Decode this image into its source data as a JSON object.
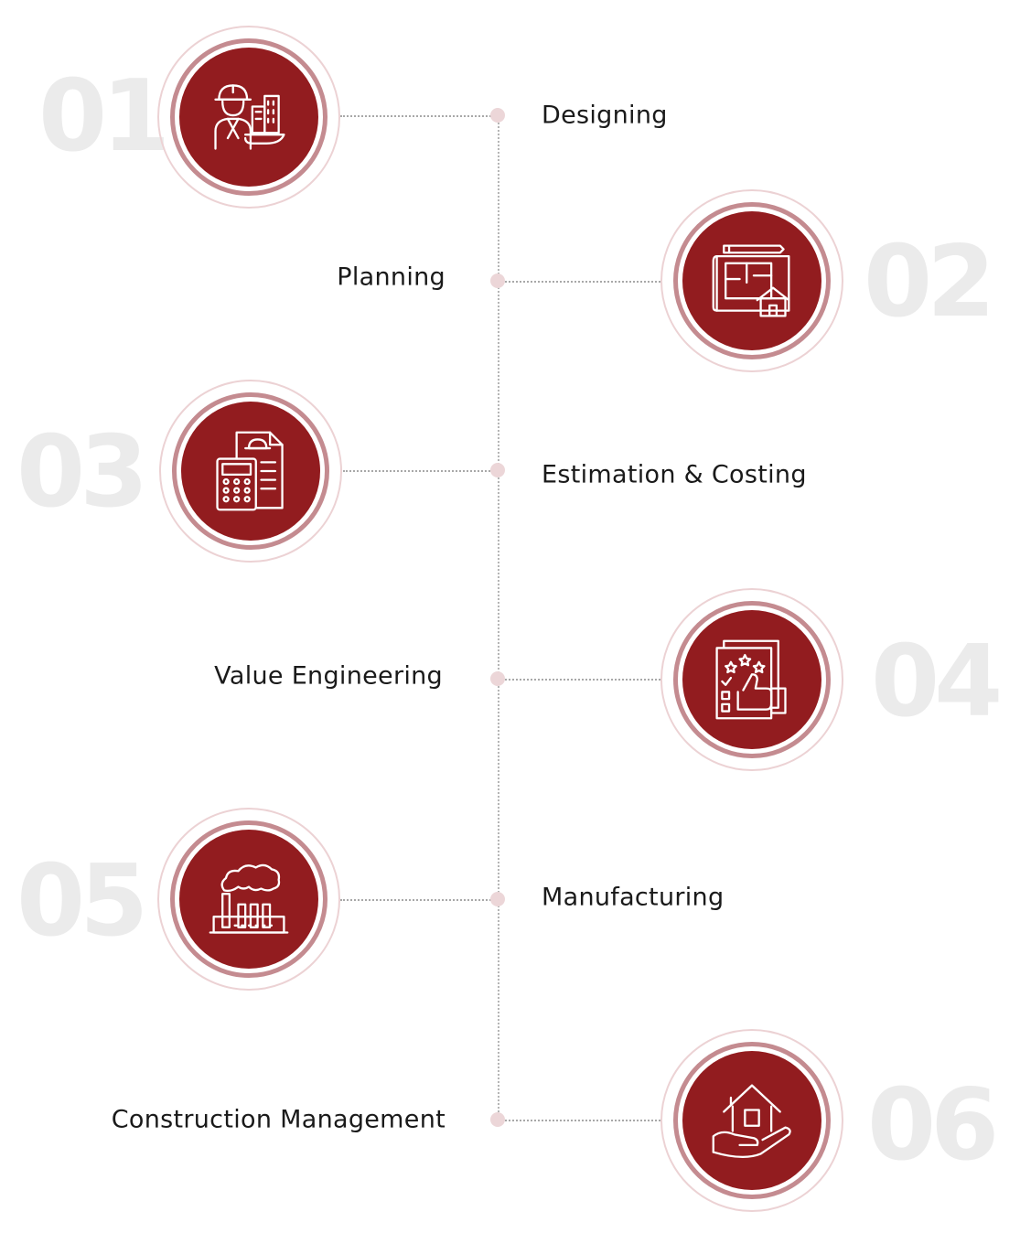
{
  "steps": [
    {
      "number": "01",
      "label": "Designing",
      "icon": "engineer-building-icon"
    },
    {
      "number": "02",
      "label": "Planning",
      "icon": "blueprint-house-icon"
    },
    {
      "number": "03",
      "label": "Estimation & Costing",
      "icon": "calculator-document-icon"
    },
    {
      "number": "04",
      "label": "Value Engineering",
      "icon": "rating-thumbs-up-icon"
    },
    {
      "number": "05",
      "label": "Manufacturing",
      "icon": "factory-icon"
    },
    {
      "number": "06",
      "label": "Construction Management",
      "icon": "house-in-hand-icon"
    }
  ],
  "colors": {
    "accent": "#921c1f",
    "ring": "#c48b90",
    "outer_ring": "#ecd2d4",
    "dot": "#ecd6d8",
    "number": "#ebebeb",
    "text": "#1a1a1a"
  }
}
